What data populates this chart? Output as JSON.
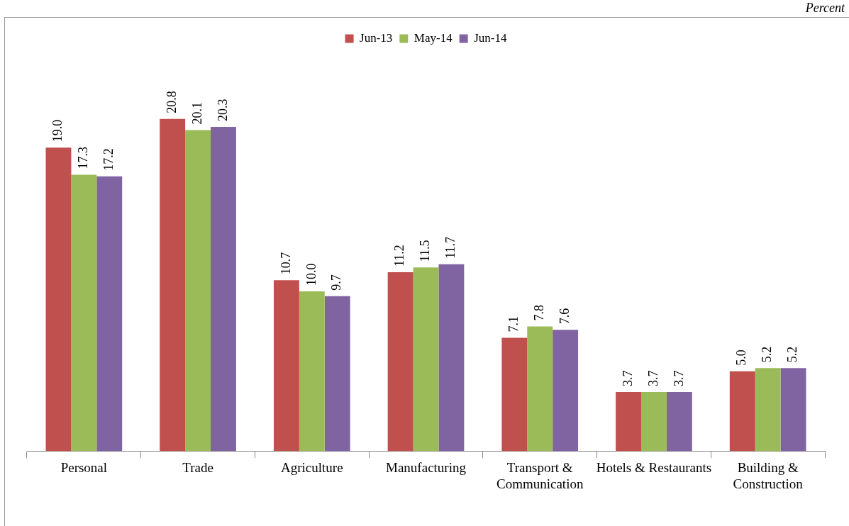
{
  "chart_data": {
    "type": "bar",
    "categories": [
      "Personal",
      "Trade",
      "Agriculture",
      "Manufacturing",
      "Transport & Communication",
      "Hotels & Restaurants",
      "Building & Construction"
    ],
    "series": [
      {
        "name": "Jun-13",
        "color": "#c0504d",
        "values": [
          19.0,
          20.8,
          10.7,
          11.2,
          7.1,
          3.7,
          5.0
        ],
        "value_labels": [
          "19.0",
          "20.8",
          "10.7",
          "11.2",
          "7.1",
          "3.7",
          "5.0"
        ]
      },
      {
        "name": "May-14",
        "color": "#9bbb59",
        "values": [
          17.3,
          20.1,
          10.0,
          11.5,
          7.8,
          3.7,
          5.2
        ],
        "value_labels": [
          "17.3",
          "20.1",
          "10.0",
          "11.5",
          "7.8",
          "3.7",
          "5.2"
        ]
      },
      {
        "name": "Jun-14",
        "color": "#8064a2",
        "values": [
          17.2,
          20.3,
          9.7,
          11.7,
          7.6,
          3.7,
          5.2
        ],
        "value_labels": [
          "17.2",
          "20.3",
          "9.7",
          "11.7",
          "7.6",
          "3.7",
          "5.2"
        ]
      }
    ],
    "legend": "top",
    "grid": false,
    "annotations": [
      "Percent"
    ]
  }
}
